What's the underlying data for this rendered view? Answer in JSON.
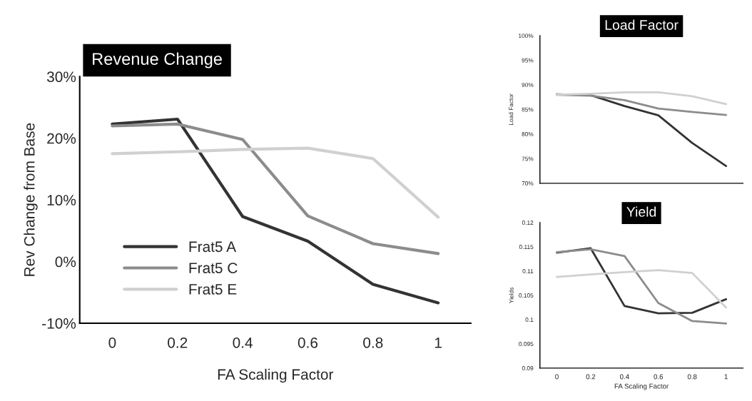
{
  "chart_data": [
    {
      "type": "line",
      "title": "Revenue Change",
      "xlabel": "FA Scaling Factor",
      "ylabel": "Rev Change from Base",
      "categories": [
        "0",
        "0.2",
        "0.4",
        "0.6",
        "0.8",
        "1"
      ],
      "series": [
        {
          "name": "Frat5 A",
          "color": "#333333",
          "values": [
            22.3,
            23.1,
            7.3,
            3.3,
            -3.7,
            -6.7
          ]
        },
        {
          "name": "Frat5 C",
          "color": "#8c8c8c",
          "values": [
            22.0,
            22.3,
            19.8,
            7.4,
            2.9,
            1.3
          ]
        },
        {
          "name": "Frat5 E",
          "color": "#d0d0d0",
          "values": [
            17.5,
            17.8,
            18.2,
            18.4,
            16.7,
            7.2
          ]
        }
      ],
      "ylim": [
        -10,
        30
      ],
      "yticks": [
        {
          "value": -10,
          "label": "-10%"
        },
        {
          "value": 0,
          "label": "0%"
        },
        {
          "value": 10,
          "label": "10%"
        },
        {
          "value": 20,
          "label": "20%"
        },
        {
          "value": 30,
          "label": "30%"
        }
      ],
      "grid": false,
      "legend": "bottom left",
      "marker": "none",
      "line_style": "solid"
    },
    {
      "type": "line",
      "title": "Load Factor",
      "ylabel": "Load Factor",
      "categories": [
        "0",
        "0.2",
        "0.4",
        "0.6",
        "0.8",
        "1"
      ],
      "series": [
        {
          "color": "#333333",
          "values": [
            88.1,
            87.9,
            85.7,
            83.8,
            78.2,
            73.5
          ]
        },
        {
          "color": "#8c8c8c",
          "values": [
            88.0,
            87.8,
            86.9,
            85.2,
            84.5,
            83.9
          ]
        },
        {
          "color": "#d0d0d0",
          "values": [
            88.0,
            88.2,
            88.5,
            88.5,
            87.7,
            86.1
          ]
        }
      ],
      "ylim": [
        70,
        100
      ],
      "yticks": [
        {
          "value": 70,
          "label": "70%"
        },
        {
          "value": 75,
          "label": "75%"
        },
        {
          "value": 80,
          "label": "80%"
        },
        {
          "value": 85,
          "label": "85%"
        },
        {
          "value": 90,
          "label": "90%"
        },
        {
          "value": 95,
          "label": "95%"
        },
        {
          "value": 100,
          "label": "100%"
        }
      ],
      "tick_labels": "y",
      "grid": false,
      "legend": false,
      "marker": "none",
      "line_style": "solid"
    },
    {
      "type": "line",
      "title": "Yield",
      "xlabel": "FA Scaling Factor",
      "ylabel": "Yields",
      "categories": [
        "0",
        "0.2",
        "0.4",
        "0.6",
        "0.8",
        "1"
      ],
      "series": [
        {
          "color": "#333333",
          "values": [
            0.1138,
            0.1147,
            0.1028,
            0.1013,
            0.1014,
            0.1042
          ]
        },
        {
          "color": "#8c8c8c",
          "values": [
            0.1139,
            0.1145,
            0.1131,
            0.1034,
            0.0997,
            0.0992
          ]
        },
        {
          "color": "#d0d0d0",
          "values": [
            0.1088,
            0.1093,
            0.1098,
            0.1102,
            0.1096,
            0.1025
          ]
        }
      ],
      "ylim": [
        0.09,
        0.12
      ],
      "yticks": [
        0.09,
        0.095,
        0.1,
        0.105,
        0.11,
        0.115,
        0.12
      ],
      "grid": false,
      "legend": false,
      "marker": "none",
      "line_style": "solid"
    }
  ]
}
